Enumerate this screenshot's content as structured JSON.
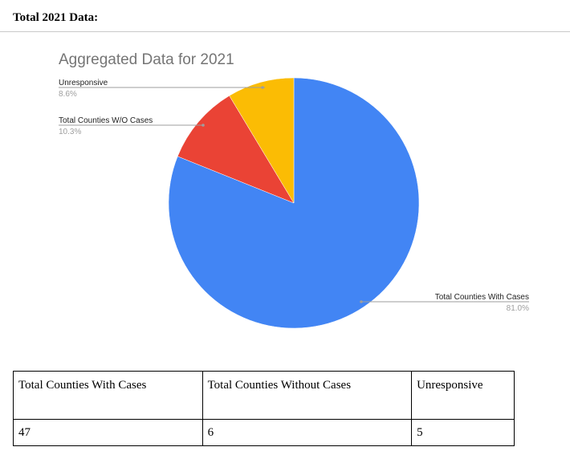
{
  "heading": "Total 2021 Data:",
  "chart_data": {
    "type": "pie",
    "title": "Aggregated Data for 2021",
    "slices": [
      {
        "label": "Total Counties With Cases",
        "percent_label": "81.0%",
        "value": 81.0,
        "color": "#4285f4"
      },
      {
        "label": "Total Counties W/O Cases",
        "percent_label": "10.3%",
        "value": 10.3,
        "color": "#ea4335"
      },
      {
        "label": "Unresponsive",
        "percent_label": "8.6%",
        "value": 8.6,
        "color": "#fbbc04"
      }
    ],
    "start": "12 o'clock",
    "direction": "clockwise",
    "legend": "none",
    "labels": "outside with leader lines"
  },
  "table": {
    "headers": [
      "Total Counties With Cases",
      "Total Counties Without Cases",
      "Unresponsive"
    ],
    "values": [
      "47",
      "6",
      "5"
    ]
  }
}
